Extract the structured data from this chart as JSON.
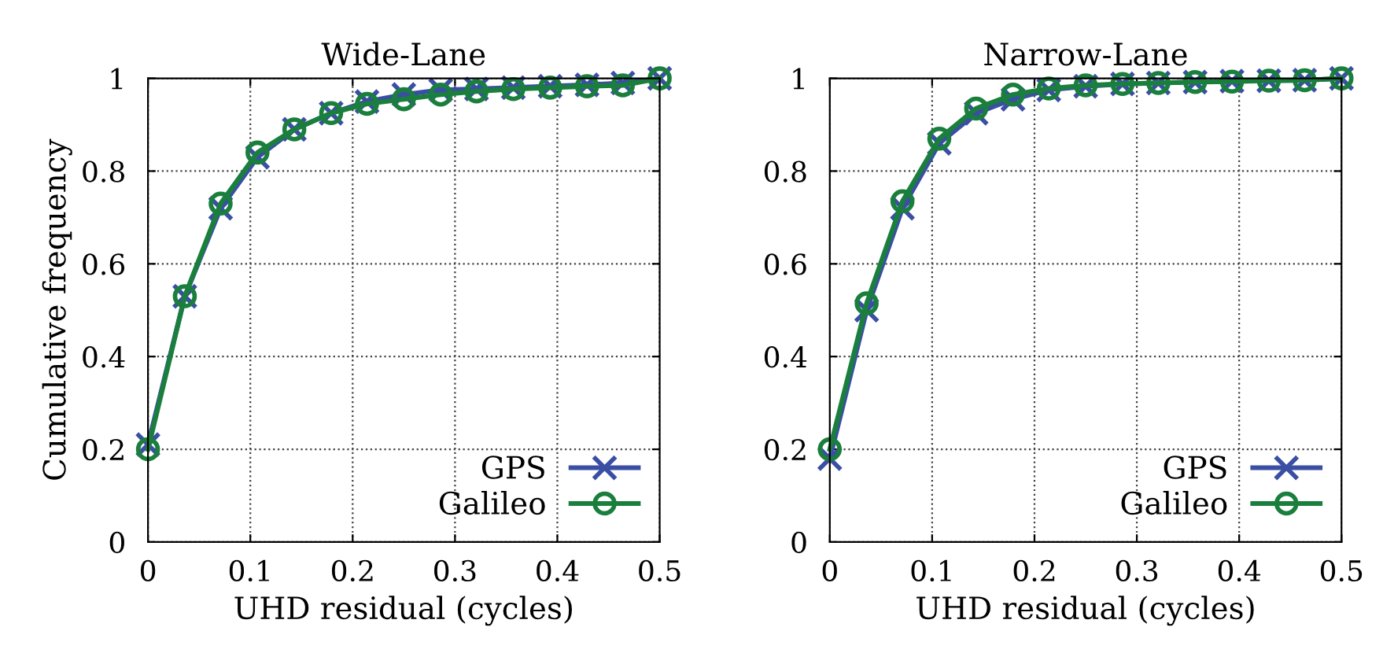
{
  "chart_data": [
    {
      "type": "line",
      "title": "Wide-Lane",
      "xlabel": "UHD residual (cycles)",
      "ylabel": "Cumulative frequency",
      "x": [
        0,
        0.036,
        0.071,
        0.107,
        0.143,
        0.179,
        0.214,
        0.25,
        0.286,
        0.321,
        0.357,
        0.393,
        0.429,
        0.464,
        0.5
      ],
      "series": [
        {
          "name": "GPS",
          "color": "#3a4fa3",
          "marker": "cross",
          "values": [
            0.21,
            0.53,
            0.72,
            0.83,
            0.89,
            0.925,
            0.95,
            0.965,
            0.975,
            0.977,
            0.98,
            0.983,
            0.986,
            0.99,
            1.0
          ]
        },
        {
          "name": "Galileo",
          "color": "#1a7f3c",
          "marker": "circle",
          "values": [
            0.2,
            0.53,
            0.73,
            0.84,
            0.89,
            0.925,
            0.945,
            0.955,
            0.965,
            0.972,
            0.977,
            0.98,
            0.983,
            0.985,
            1.0
          ]
        }
      ],
      "xlim": [
        0,
        0.5
      ],
      "xticks": [
        0,
        0.1,
        0.2,
        0.3,
        0.4,
        0.5
      ],
      "ylim": [
        0,
        1
      ],
      "yticks": [
        0,
        0.2,
        0.4,
        0.6,
        0.8,
        1
      ],
      "grid": true,
      "legend": "bottom right",
      "line_style": "solid"
    },
    {
      "type": "line",
      "title": "Narrow-Lane",
      "xlabel": "UHD residual (cycles)",
      "x": [
        0,
        0.036,
        0.071,
        0.107,
        0.143,
        0.179,
        0.214,
        0.25,
        0.286,
        0.321,
        0.357,
        0.393,
        0.429,
        0.464,
        0.5
      ],
      "series": [
        {
          "name": "GPS",
          "color": "#3a4fa3",
          "marker": "cross",
          "values": [
            0.18,
            0.5,
            0.72,
            0.86,
            0.925,
            0.955,
            0.975,
            0.983,
            0.988,
            0.99,
            0.992,
            0.994,
            0.995,
            0.996,
            1.0
          ]
        },
        {
          "name": "Galileo",
          "color": "#1a7f3c",
          "marker": "circle",
          "values": [
            0.2,
            0.515,
            0.735,
            0.87,
            0.935,
            0.965,
            0.978,
            0.985,
            0.988,
            0.99,
            0.992,
            0.993,
            0.995,
            0.996,
            1.0
          ]
        }
      ],
      "xlim": [
        0,
        0.5
      ],
      "xticks": [
        0,
        0.1,
        0.2,
        0.3,
        0.4,
        0.5
      ],
      "ylim": [
        0,
        1
      ],
      "yticks": [
        0,
        0.2,
        0.4,
        0.6,
        0.8,
        1
      ],
      "grid": true,
      "legend": "bottom right",
      "line_style": "solid"
    }
  ]
}
